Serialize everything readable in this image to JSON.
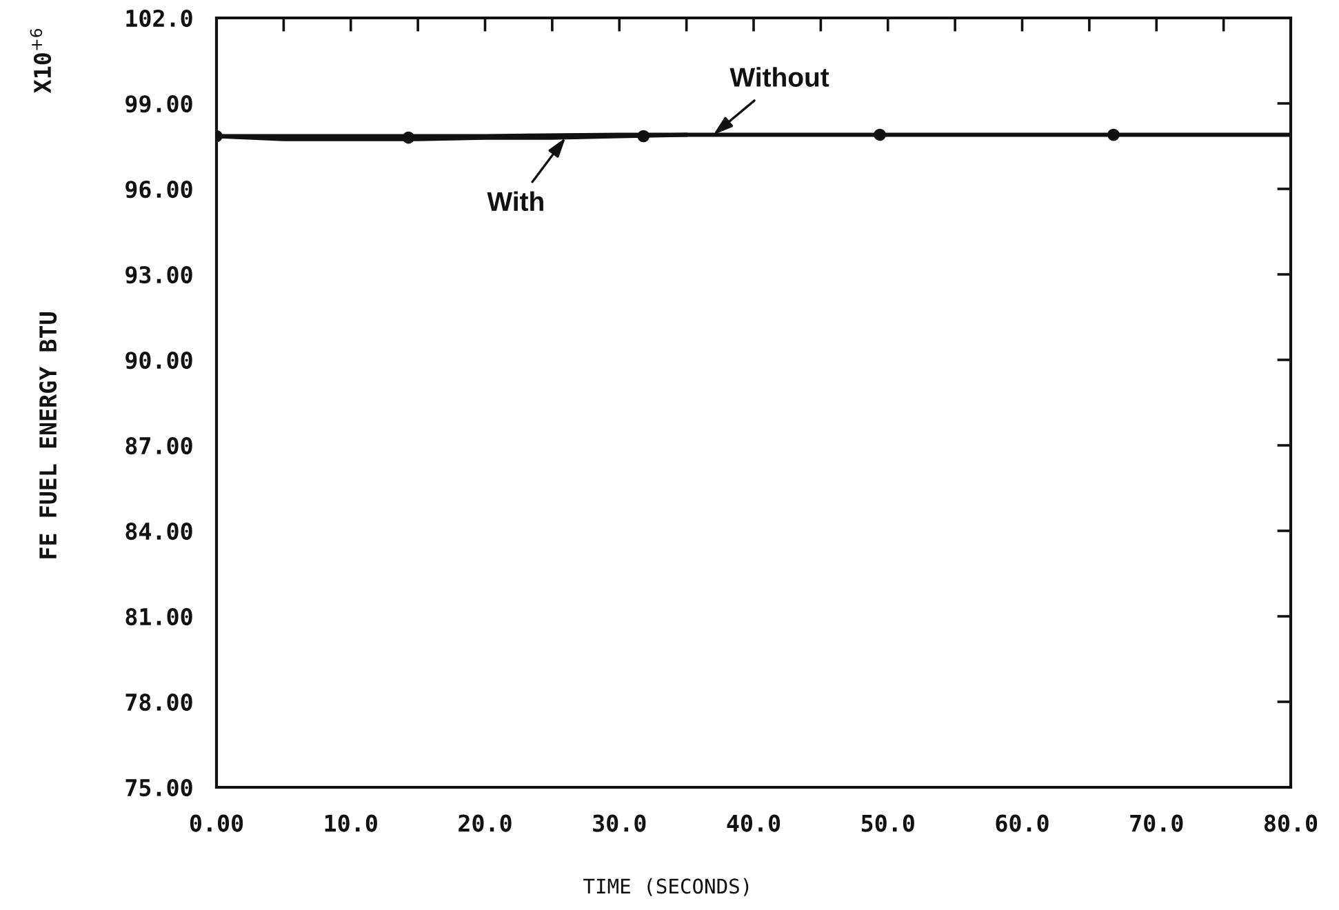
{
  "chart_data": {
    "type": "line",
    "xlabel": "TIME (SECONDS)",
    "ylabel": "FE FUEL ENERGY BTU",
    "annotations": [
      "X10$^{+6}$",
      {
        "text": "Without",
        "x": 37,
        "y": 97.9
      },
      {
        "text": "With",
        "x": 26,
        "y": 97.8
      }
    ],
    "xlim": [
      0,
      80
    ],
    "ylim": [
      75,
      102
    ],
    "xticks": [
      {
        "value": 0,
        "label": "0.00"
      },
      {
        "value": 5,
        "label": null
      },
      {
        "value": 10,
        "label": "10.0"
      },
      {
        "value": 15,
        "label": null
      },
      {
        "value": 20,
        "label": "20.0"
      },
      {
        "value": 25,
        "label": null
      },
      {
        "value": 30,
        "label": "30.0"
      },
      {
        "value": 35,
        "label": null
      },
      {
        "value": 40,
        "label": "40.0"
      },
      {
        "value": 45,
        "label": null
      },
      {
        "value": 50,
        "label": "50.0"
      },
      {
        "value": 55,
        "label": null
      },
      {
        "value": 60,
        "label": "60.0"
      },
      {
        "value": 65,
        "label": null
      },
      {
        "value": 70,
        "label": "70.0"
      },
      {
        "value": 75,
        "label": null
      },
      {
        "value": 80,
        "label": "80.0"
      }
    ],
    "yticks": [
      {
        "value": 75,
        "label": "75.00"
      },
      {
        "value": 78,
        "label": "78.00"
      },
      {
        "value": 81,
        "label": "81.00"
      },
      {
        "value": 84,
        "label": "84.00"
      },
      {
        "value": 87,
        "label": "87.00"
      },
      {
        "value": 90,
        "label": "90.00"
      },
      {
        "value": 93,
        "label": "93.00"
      },
      {
        "value": 96,
        "label": "96.00"
      },
      {
        "value": 99,
        "label": "99.00"
      },
      {
        "value": 102,
        "label": "102.0"
      }
    ],
    "series": [
      {
        "color": "#111111",
        "x": [
          0,
          10,
          20,
          30,
          40,
          50,
          60,
          70,
          80
        ],
        "values": [
          97.85,
          97.85,
          97.85,
          97.9,
          97.9,
          97.9,
          97.9,
          97.9,
          97.9
        ]
      },
      {
        "color": "#111111",
        "x": [
          0,
          5,
          10,
          15,
          20,
          25,
          30,
          35
        ],
        "values": [
          97.85,
          97.75,
          97.75,
          97.75,
          97.8,
          97.8,
          97.85,
          97.9
        ]
      },
      {
        "type": "scatter",
        "color": "#111111",
        "marker": "circle",
        "x": [
          0,
          14.3,
          31.8,
          49.4,
          66.8
        ],
        "values": [
          97.85,
          97.8,
          97.85,
          97.9,
          97.9
        ]
      }
    ]
  }
}
